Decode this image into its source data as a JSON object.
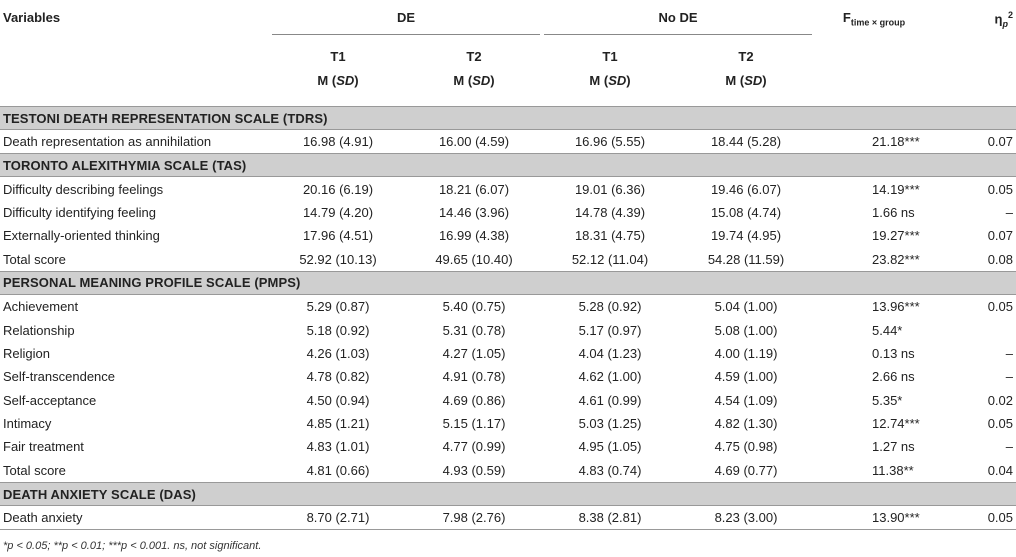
{
  "header": {
    "variables": "Variables",
    "de": "DE",
    "no_de": "No DE",
    "f_main": "F",
    "f_sub": "time × group",
    "eta_main": "η",
    "eta_sub": "p",
    "eta_sup": "2",
    "t1": "T1",
    "t2": "T2",
    "m": "M (",
    "sd": "SD",
    "close": ")"
  },
  "sections": [
    {
      "title": "TESTONI DEATH REPRESENTATION SCALE (TDRS)",
      "rows": [
        {
          "label": "Death representation as annihilation",
          "de_t1": "16.98 (4.91)",
          "de_t2": "16.00 (4.59)",
          "node_t1": "16.96 (5.55)",
          "node_t2": "18.44 (5.28)",
          "f": "21.18***",
          "eta": "0.07"
        }
      ]
    },
    {
      "title": "TORONTO ALEXITHYMIA SCALE (TAS)",
      "rows": [
        {
          "label": "Difficulty describing feelings",
          "de_t1": "20.16 (6.19)",
          "de_t2": "18.21 (6.07)",
          "node_t1": "19.01 (6.36)",
          "node_t2": "19.46 (6.07)",
          "f": "14.19***",
          "eta": "0.05"
        },
        {
          "label": "Difficulty identifying feeling",
          "de_t1": "14.79 (4.20)",
          "de_t2": "14.46 (3.96)",
          "node_t1": "14.78 (4.39)",
          "node_t2": "15.08 (4.74)",
          "f": "1.66 ns",
          "eta": "–"
        },
        {
          "label": "Externally-oriented thinking",
          "de_t1": "17.96 (4.51)",
          "de_t2": "16.99 (4.38)",
          "node_t1": "18.31 (4.75)",
          "node_t2": "19.74 (4.95)",
          "f": "19.27***",
          "eta": "0.07"
        },
        {
          "label": "Total score",
          "de_t1": "52.92 (10.13)",
          "de_t2": "49.65 (10.40)",
          "node_t1": "52.12 (11.04)",
          "node_t2": "54.28 (11.59)",
          "f": "23.82***",
          "eta": "0.08"
        }
      ]
    },
    {
      "title": "PERSONAL MEANING PROFILE SCALE (PMPS)",
      "rows": [
        {
          "label": "Achievement",
          "de_t1": "5.29 (0.87)",
          "de_t2": "5.40 (0.75)",
          "node_t1": "5.28 (0.92)",
          "node_t2": "5.04 (1.00)",
          "f": "13.96***",
          "eta": "0.05"
        },
        {
          "label": "Relationship",
          "de_t1": "5.18 (0.92)",
          "de_t2": "5.31 (0.78)",
          "node_t1": "5.17 (0.97)",
          "node_t2": "5.08 (1.00)",
          "f": "5.44*",
          "eta": ""
        },
        {
          "label": "Religion",
          "de_t1": "4.26 (1.03)",
          "de_t2": "4.27 (1.05)",
          "node_t1": "4.04 (1.23)",
          "node_t2": "4.00 (1.19)",
          "f": "0.13 ns",
          "eta": "–"
        },
        {
          "label": "Self-transcendence",
          "de_t1": "4.78 (0.82)",
          "de_t2": "4.91 (0.78)",
          "node_t1": "4.62 (1.00)",
          "node_t2": "4.59 (1.00)",
          "f": "2.66 ns",
          "eta": "–"
        },
        {
          "label": "Self-acceptance",
          "de_t1": "4.50 (0.94)",
          "de_t2": "4.69 (0.86)",
          "node_t1": "4.61 (0.99)",
          "node_t2": "4.54 (1.09)",
          "f": "5.35*",
          "eta": "0.02"
        },
        {
          "label": "Intimacy",
          "de_t1": "4.85 (1.21)",
          "de_t2": "5.15 (1.17)",
          "node_t1": "5.03 (1.25)",
          "node_t2": "4.82 (1.30)",
          "f": "12.74***",
          "eta": "0.05"
        },
        {
          "label": "Fair treatment",
          "de_t1": "4.83 (1.01)",
          "de_t2": "4.77 (0.99)",
          "node_t1": "4.95 (1.05)",
          "node_t2": "4.75 (0.98)",
          "f": "1.27 ns",
          "eta": "–"
        },
        {
          "label": "Total score",
          "de_t1": "4.81 (0.66)",
          "de_t2": "4.93 (0.59)",
          "node_t1": "4.83 (0.74)",
          "node_t2": "4.69 (0.77)",
          "f": "11.38**",
          "eta": "0.04"
        }
      ]
    },
    {
      "title": "DEATH ANXIETY SCALE (DAS)",
      "rows": [
        {
          "label": "Death anxiety",
          "de_t1": "8.70 (2.71)",
          "de_t2": "7.98 (2.76)",
          "node_t1": "8.38 (2.81)",
          "node_t2": "8.23 (3.00)",
          "f": "13.90***",
          "eta": "0.05"
        }
      ]
    }
  ],
  "footnote": "*p < 0.05; **p < 0.01; ***p < 0.001. ns, not significant."
}
